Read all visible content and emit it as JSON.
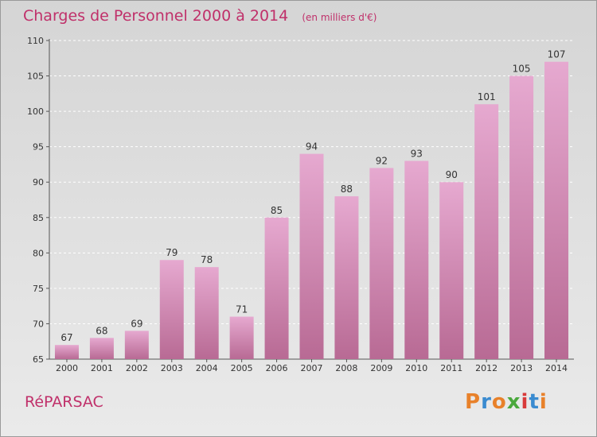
{
  "title": "Charges de Personnel 2000 à 2014",
  "subtitle": "(en milliers d'€)",
  "commune": "RéPARSAC",
  "logo": {
    "text": "Proxiti",
    "colors": [
      "#e8812a",
      "#3a8bd0",
      "#e8812a",
      "#4aa83c",
      "#d83a3a",
      "#3a8bd0",
      "#e8812a"
    ]
  },
  "colors": {
    "bar_top": "#e6a9d0",
    "bar_bottom": "#b86a94",
    "title": "#c0306a"
  },
  "chart_data": {
    "type": "bar",
    "categories": [
      "2000",
      "2001",
      "2002",
      "2003",
      "2004",
      "2005",
      "2006",
      "2007",
      "2008",
      "2009",
      "2010",
      "2011",
      "2012",
      "2013",
      "2014"
    ],
    "values": [
      67,
      68,
      69,
      79,
      78,
      71,
      85,
      94,
      88,
      92,
      93,
      90,
      101,
      105,
      107
    ],
    "ylim": [
      65,
      110
    ],
    "yticks": [
      65,
      70,
      75,
      80,
      85,
      90,
      95,
      100,
      105,
      110
    ],
    "grid": true
  }
}
